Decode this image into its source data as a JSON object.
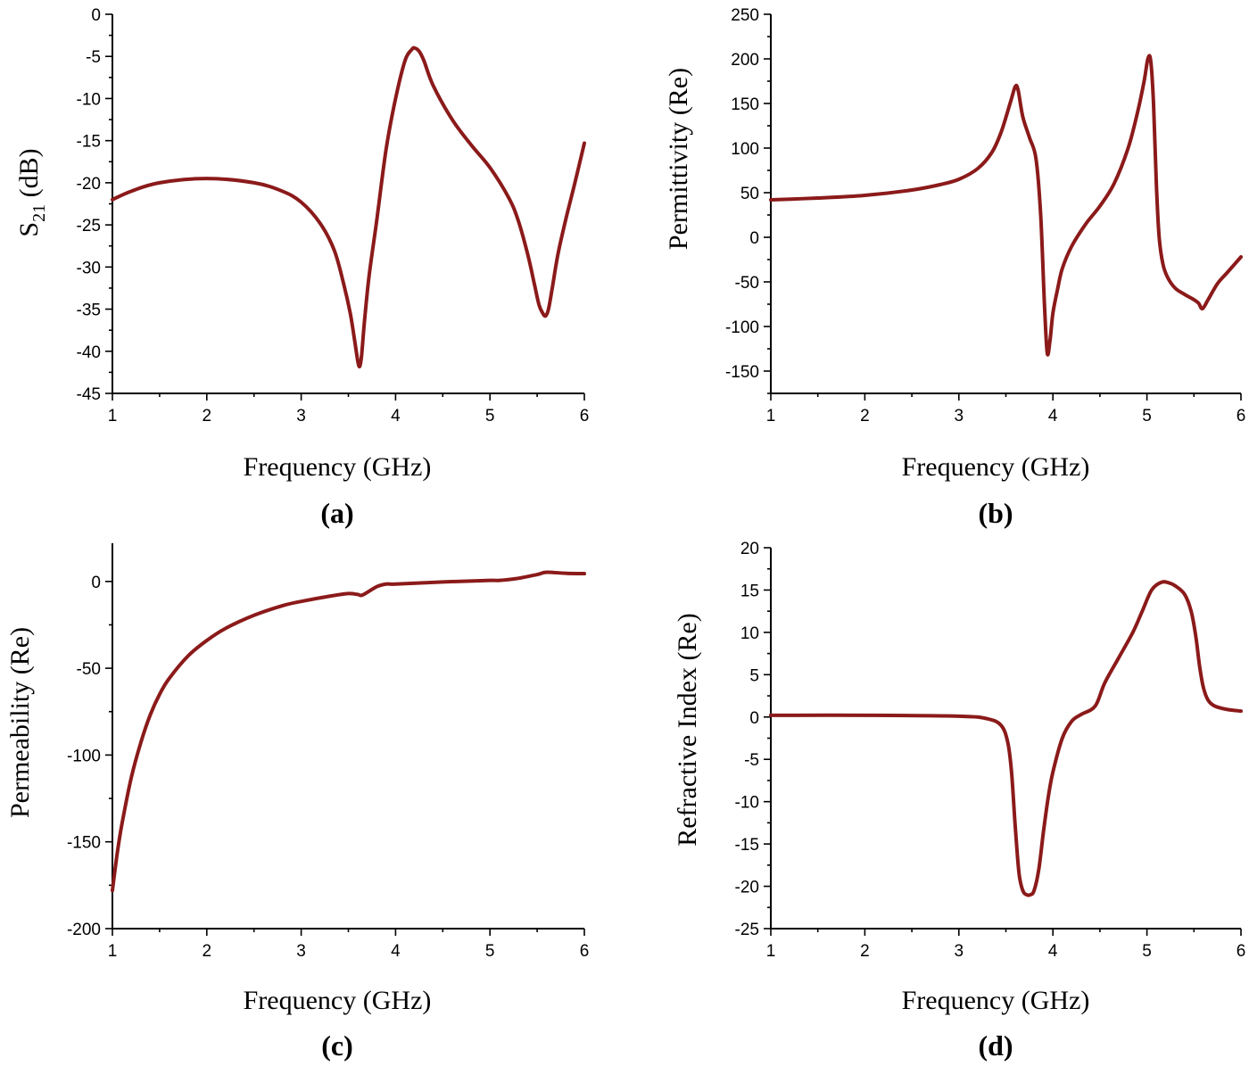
{
  "chart_data": [
    {
      "panel": "(a)",
      "type": "line",
      "xlabel": "Frequency (GHz)",
      "ylabel": "S21 (dB)",
      "ylabel_main": "S",
      "ylabel_sub": "21",
      "ylabel_rest": " (dB)",
      "xlim": [
        1,
        6
      ],
      "ylim": [
        -45,
        0
      ],
      "xticks": [
        1,
        2,
        3,
        4,
        5,
        6
      ],
      "xtick_labels": [
        "1",
        "2",
        "3",
        "4",
        "5",
        "6"
      ],
      "yticks": [
        0,
        -5,
        -10,
        -15,
        -20,
        -25,
        -30,
        -35,
        -40,
        -45
      ],
      "ytick_labels": [
        "0",
        "-5",
        "-10",
        "-15",
        "-20",
        "-25",
        "-30",
        "-35",
        "-40",
        "-45"
      ],
      "series": [
        {
          "name": "S21",
          "color": "#8b1a1a",
          "x": [
            1.0,
            1.2,
            1.5,
            2.0,
            2.5,
            2.8,
            3.0,
            3.2,
            3.35,
            3.45,
            3.52,
            3.57,
            3.6,
            3.62,
            3.64,
            3.67,
            3.72,
            3.8,
            3.9,
            4.0,
            4.1,
            4.17,
            4.2,
            4.25,
            4.3,
            4.4,
            4.6,
            4.8,
            5.0,
            5.2,
            5.3,
            5.4,
            5.47,
            5.52,
            5.56,
            5.59,
            5.62,
            5.66,
            5.72,
            5.8,
            5.9,
            6.0
          ],
          "y": [
            -22,
            -21,
            -20,
            -19.5,
            -20,
            -21,
            -22.3,
            -24.8,
            -28,
            -32,
            -35.5,
            -39,
            -41.2,
            -41.8,
            -40.5,
            -36.5,
            -31,
            -24.5,
            -16,
            -10,
            -5.5,
            -4.2,
            -4,
            -4.4,
            -5.5,
            -8.5,
            -12.5,
            -15.5,
            -18.2,
            -21.8,
            -24.5,
            -28.5,
            -32,
            -34.5,
            -35.5,
            -35.8,
            -35,
            -32.5,
            -28.5,
            -24.5,
            -20,
            -15.3
          ]
        }
      ]
    },
    {
      "panel": "(b)",
      "type": "line",
      "xlabel": "Frequency (GHz)",
      "ylabel": "Permittivity (Re)",
      "xlim": [
        1,
        6
      ],
      "ylim": [
        -175,
        250
      ],
      "xticks": [
        1,
        2,
        3,
        4,
        5,
        6
      ],
      "xtick_labels": [
        "1",
        "2",
        "3",
        "4",
        "5",
        "6"
      ],
      "yticks": [
        250,
        200,
        150,
        100,
        50,
        0,
        -50,
        -100,
        -150
      ],
      "ytick_labels": [
        "250",
        "200",
        "150",
        "100",
        "50",
        "0",
        "-50",
        "-100",
        "-150"
      ],
      "series": [
        {
          "name": "Permittivity (Re)",
          "color": "#8b1a1a",
          "x": [
            1.0,
            1.5,
            2.0,
            2.5,
            2.8,
            3.0,
            3.2,
            3.35,
            3.45,
            3.55,
            3.6,
            3.63,
            3.68,
            3.75,
            3.82,
            3.87,
            3.91,
            3.94,
            3.97,
            4.0,
            4.05,
            4.1,
            4.2,
            4.35,
            4.5,
            4.65,
            4.8,
            4.9,
            4.97,
            5.01,
            5.04,
            5.07,
            5.1,
            5.13,
            5.17,
            5.22,
            5.3,
            5.4,
            5.5,
            5.55,
            5.59,
            5.65,
            5.75,
            5.85,
            6.0
          ],
          "y": [
            42,
            44,
            47,
            53,
            59,
            65,
            77,
            95,
            118,
            152,
            169,
            165,
            135,
            112,
            88,
            25,
            -75,
            -130,
            -115,
            -85,
            -58,
            -35,
            -10,
            15,
            35,
            60,
            100,
            140,
            175,
            200,
            198,
            150,
            60,
            0,
            -30,
            -45,
            -57,
            -64,
            -70,
            -74,
            -80,
            -70,
            -52,
            -40,
            -22
          ]
        }
      ]
    },
    {
      "panel": "(c)",
      "type": "line",
      "xlabel": "Frequency (GHz)",
      "ylabel": "Permeability (Re)",
      "xlim": [
        1,
        6
      ],
      "ylim": [
        -200,
        22
      ],
      "xticks": [
        1,
        2,
        3,
        4,
        5,
        6
      ],
      "xtick_labels": [
        "1",
        "2",
        "3",
        "4",
        "5",
        "6"
      ],
      "yticks": [
        0,
        -50,
        -100,
        -150,
        -200
      ],
      "ytick_labels": [
        "0",
        "-50",
        "-100",
        "-150",
        "-200"
      ],
      "series": [
        {
          "name": "Permeability (Re)",
          "color": "#8b1a1a",
          "x": [
            1.0,
            1.05,
            1.1,
            1.2,
            1.3,
            1.4,
            1.5,
            1.6,
            1.8,
            2.0,
            2.2,
            2.5,
            2.8,
            3.0,
            3.3,
            3.5,
            3.6,
            3.65,
            3.8,
            3.9,
            4.0,
            4.5,
            5.0,
            5.1,
            5.3,
            5.5,
            5.6,
            5.8,
            6.0
          ],
          "y": [
            -178,
            -157,
            -140,
            -113,
            -93,
            -77,
            -65,
            -56,
            -43,
            -34,
            -27,
            -19.5,
            -14,
            -11.5,
            -8.5,
            -7,
            -7.5,
            -7.8,
            -3,
            -1.5,
            -1.5,
            -0.3,
            0.6,
            0.6,
            1.8,
            4,
            5.3,
            4.7,
            4.5
          ]
        }
      ]
    },
    {
      "panel": "(d)",
      "type": "line",
      "xlabel": "Frequency (GHz)",
      "ylabel": "Refractive Index (Re)",
      "xlim": [
        1,
        6
      ],
      "ylim": [
        -25,
        20
      ],
      "xticks": [
        1,
        2,
        3,
        4,
        5,
        6
      ],
      "xtick_labels": [
        "1",
        "2",
        "3",
        "4",
        "5",
        "6"
      ],
      "yticks": [
        20,
        15,
        10,
        5,
        0,
        -5,
        -10,
        -15,
        -20,
        -25
      ],
      "ytick_labels": [
        "20",
        "15",
        "10",
        "5",
        "0",
        "-5",
        "-10",
        "-15",
        "-20",
        "-25"
      ],
      "series": [
        {
          "name": "Refractive Index (Re)",
          "color": "#8b1a1a",
          "x": [
            1.0,
            2.0,
            3.0,
            3.3,
            3.45,
            3.52,
            3.56,
            3.6,
            3.64,
            3.68,
            3.72,
            3.76,
            3.8,
            3.85,
            3.9,
            3.95,
            4.0,
            4.1,
            4.2,
            4.3,
            4.45,
            4.55,
            4.7,
            4.85,
            4.95,
            5.05,
            5.15,
            5.22,
            5.3,
            5.4,
            5.47,
            5.52,
            5.56,
            5.6,
            5.65,
            5.72,
            5.85,
            6.0
          ],
          "y": [
            0.2,
            0.2,
            0.1,
            -0.2,
            -1,
            -3,
            -6.5,
            -13,
            -18.5,
            -20.5,
            -21,
            -21,
            -20.5,
            -18,
            -13.5,
            -9.5,
            -6.5,
            -2.5,
            -0.5,
            0.3,
            1.3,
            4,
            7,
            10,
            12.5,
            15,
            15.9,
            15.9,
            15.5,
            14.5,
            12.5,
            9.5,
            6,
            3.5,
            2,
            1.3,
            0.9,
            0.7
          ]
        }
      ]
    }
  ]
}
